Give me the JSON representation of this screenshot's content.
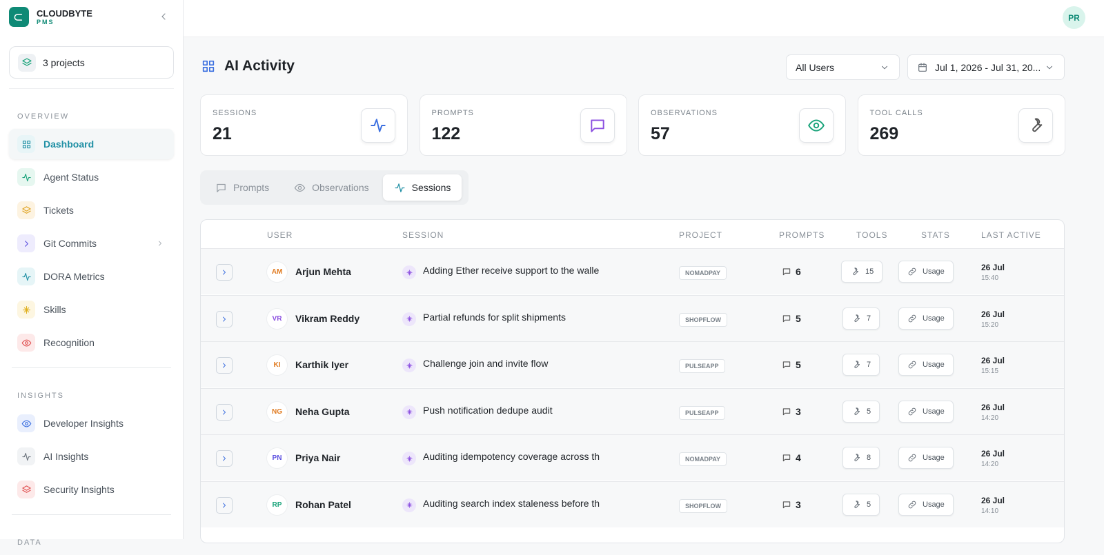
{
  "sidebar": {
    "brand": "CLOUDBYTE",
    "brand_sub": "PMS",
    "projects": "3 projects",
    "sections": [
      {
        "title": "OVERVIEW",
        "items": [
          "Dashboard",
          "Agent Status",
          "Tickets",
          "Git Commits",
          "DORA Metrics",
          "Skills",
          "Recognition"
        ]
      },
      {
        "title": "INSIGHTS",
        "items": [
          "Developer Insights",
          "AI Insights",
          "Security Insights"
        ]
      },
      {
        "title": "DATA",
        "items": []
      }
    ]
  },
  "header": {
    "avatar": "PR"
  },
  "page": {
    "title": "AI Activity",
    "user_filter": "All Users",
    "date_range": "Jul 1, 2026 - Jul 31, 20..."
  },
  "stats": [
    {
      "label": "SESSIONS",
      "value": 21,
      "color": "#3b6fe0"
    },
    {
      "label": "PROMPTS",
      "value": 122,
      "color": "#8b4fe0"
    },
    {
      "label": "OBSERVATIONS",
      "value": 57,
      "color": "#19a37a"
    },
    {
      "label": "TOOL CALLS",
      "value": 269,
      "color": "#555555"
    }
  ],
  "tabs": [
    "Prompts",
    "Observations",
    "Sessions"
  ],
  "table": {
    "columns": [
      "USER",
      "SESSION",
      "PROJECT",
      "PROMPTS",
      "TOOLS",
      "STATS",
      "LAST ACTIVE"
    ],
    "rows": [
      {
        "initials": "AM",
        "color": "#e07a1f",
        "user": "Arjun Mehta",
        "session": "Adding Ether receive support to the walle",
        "project": "NOMADPAY",
        "prompts": 6,
        "tools": 15,
        "stats": "Usage",
        "date": "26 Jul",
        "time": "15:40"
      },
      {
        "initials": "VR",
        "color": "#8b4fe0",
        "user": "Vikram Reddy",
        "session": "Partial refunds for split shipments",
        "project": "SHOPFLOW",
        "prompts": 5,
        "tools": 7,
        "stats": "Usage",
        "date": "26 Jul",
        "time": "15:20"
      },
      {
        "initials": "KI",
        "color": "#e07a1f",
        "user": "Karthik Iyer",
        "session": "Challenge join and invite flow",
        "project": "PULSEAPP",
        "prompts": 5,
        "tools": 7,
        "stats": "Usage",
        "date": "26 Jul",
        "time": "15:15"
      },
      {
        "initials": "NG",
        "color": "#e07a1f",
        "user": "Neha Gupta",
        "session": "Push notification dedupe audit",
        "project": "PULSEAPP",
        "prompts": 3,
        "tools": 5,
        "stats": "Usage",
        "date": "26 Jul",
        "time": "14:20"
      },
      {
        "initials": "PN",
        "color": "#5b4fe0",
        "user": "Priya Nair",
        "session": "Auditing idempotency coverage across th",
        "project": "NOMADPAY",
        "prompts": 4,
        "tools": 8,
        "stats": "Usage",
        "date": "26 Jul",
        "time": "14:20"
      },
      {
        "initials": "RP",
        "color": "#19a37a",
        "user": "Rohan Patel",
        "session": "Auditing search index staleness before th",
        "project": "SHOPFLOW",
        "prompts": 3,
        "tools": 5,
        "stats": "Usage",
        "date": "26 Jul",
        "time": "14:10"
      }
    ]
  }
}
